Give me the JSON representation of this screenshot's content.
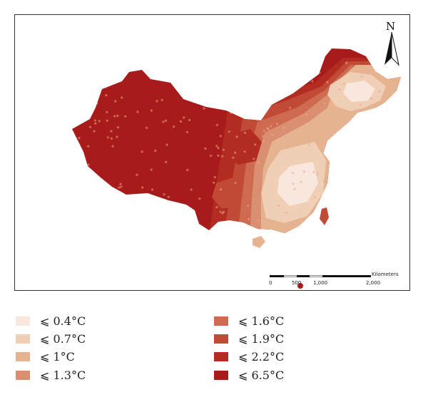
{
  "map": {
    "north_label": "N",
    "scale": {
      "unit_label": "Kilometers",
      "ticks": [
        "0",
        "500",
        "1,000",
        "2,000"
      ]
    },
    "palette": [
      "#f8e7dc",
      "#f0cfb7",
      "#e5b38f",
      "#d98f70",
      "#cd6a50",
      "#c14a36",
      "#b22c22",
      "#a81b1b"
    ]
  },
  "legend": {
    "items": [
      {
        "label": "⩽ 0.4°C",
        "color": "#f8e7dc"
      },
      {
        "label": "⩽ 0.7°C",
        "color": "#f0cfb7"
      },
      {
        "label": "⩽ 1°C",
        "color": "#e5b38f"
      },
      {
        "label": "⩽ 1.3°C",
        "color": "#d98f70"
      },
      {
        "label": "⩽ 1.6°C",
        "color": "#cd6a50"
      },
      {
        "label": "⩽ 1.9°C",
        "color": "#c14a36"
      },
      {
        "label": "⩽ 2.2°C",
        "color": "#b22c22"
      },
      {
        "label": "⩽ 6.5°C",
        "color": "#a81b1b"
      }
    ]
  }
}
